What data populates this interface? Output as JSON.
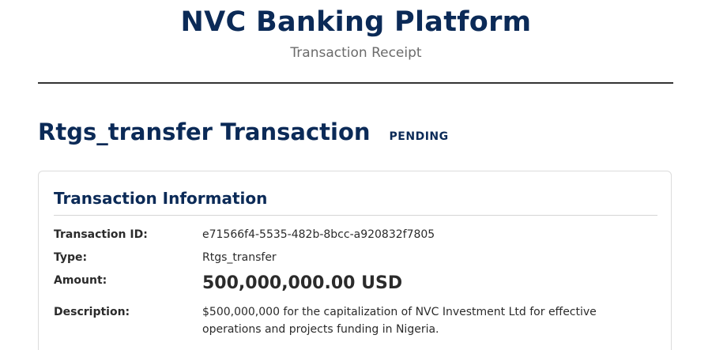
{
  "header": {
    "brand": "NVC Banking Platform",
    "subtitle": "Transaction Receipt"
  },
  "transaction": {
    "title": "Rtgs_transfer Transaction",
    "status": "PENDING"
  },
  "info_card": {
    "title": "Transaction Information",
    "rows": {
      "id": {
        "label": "Transaction ID:",
        "value": "e71566f4-5535-482b-8bcc-a920832f7805"
      },
      "type": {
        "label": "Type:",
        "value": "Rtgs_transfer"
      },
      "amount": {
        "label": "Amount:",
        "value": "500,000,000.00 USD"
      },
      "description": {
        "label": "Description:",
        "value": "$500,000,000 for the capitalization of NVC Investment Ltd for effective operations and projects funding in Nigeria."
      }
    }
  },
  "colors": {
    "brand_navy": "#0b2a57",
    "text": "#2b2b2b",
    "muted": "#6b6b6b"
  }
}
